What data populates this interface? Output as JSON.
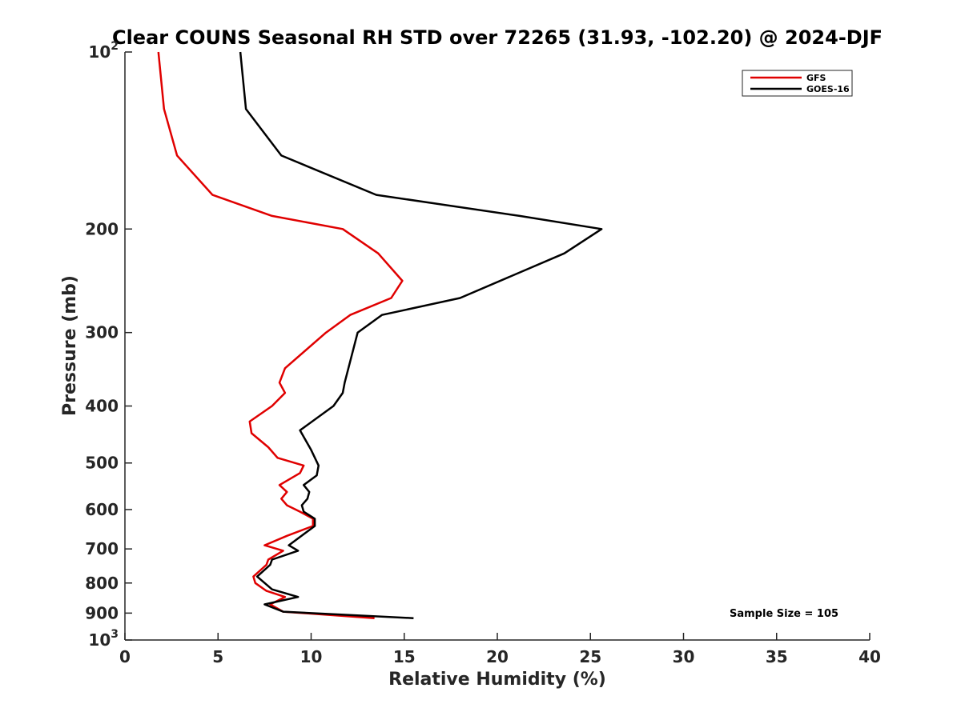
{
  "chart_data": {
    "type": "line",
    "title": "Clear COUNS Seasonal RH STD over 72265 (31.93, -102.20) @ 2024-DJF",
    "xlabel": "Relative Humidity (%)",
    "ylabel": "Pressure (mb)",
    "xlim": [
      0,
      40
    ],
    "ylim": [
      100,
      1000
    ],
    "y_scale": "log",
    "y_reversed": true,
    "x_ticks": [
      0,
      5,
      10,
      15,
      20,
      25,
      30,
      35,
      40
    ],
    "x_tick_labels": [
      "0",
      "5",
      "10",
      "15",
      "20",
      "25",
      "30",
      "35",
      "40"
    ],
    "y_ticks": [
      100,
      200,
      300,
      400,
      500,
      600,
      700,
      800,
      900,
      1000
    ],
    "y_tick_labels": [
      {
        "base": "10",
        "exp": "2"
      },
      {
        "base": "200",
        "exp": ""
      },
      {
        "base": "300",
        "exp": ""
      },
      {
        "base": "400",
        "exp": ""
      },
      {
        "base": "500",
        "exp": ""
      },
      {
        "base": "600",
        "exp": ""
      },
      {
        "base": "700",
        "exp": ""
      },
      {
        "base": "800",
        "exp": ""
      },
      {
        "base": "900",
        "exp": ""
      },
      {
        "base": "10",
        "exp": "3"
      }
    ],
    "legend_position": "top-right",
    "annotation": "Sample Size = 105",
    "series": [
      {
        "name": "GFS",
        "color": "#e00000",
        "points": [
          [
            1.8,
            100
          ],
          [
            2.1,
            125
          ],
          [
            2.8,
            150
          ],
          [
            4.7,
            175
          ],
          [
            7.9,
            190
          ],
          [
            11.7,
            200
          ],
          [
            13.6,
            220
          ],
          [
            14.9,
            245
          ],
          [
            14.3,
            262
          ],
          [
            12.1,
            280
          ],
          [
            10.8,
            300
          ],
          [
            8.6,
            345
          ],
          [
            8.3,
            365
          ],
          [
            8.6,
            380
          ],
          [
            7.9,
            400
          ],
          [
            6.7,
            425
          ],
          [
            6.8,
            445
          ],
          [
            7.7,
            470
          ],
          [
            8.2,
            490
          ],
          [
            9.6,
            505
          ],
          [
            9.4,
            520
          ],
          [
            8.3,
            545
          ],
          [
            8.7,
            560
          ],
          [
            8.4,
            575
          ],
          [
            8.7,
            590
          ],
          [
            9.4,
            605
          ],
          [
            10.1,
            622
          ],
          [
            10.1,
            640
          ],
          [
            8.7,
            665
          ],
          [
            7.5,
            690
          ],
          [
            8.5,
            705
          ],
          [
            7.7,
            730
          ],
          [
            7.6,
            745
          ],
          [
            6.9,
            780
          ],
          [
            7.0,
            800
          ],
          [
            7.6,
            825
          ],
          [
            8.6,
            845
          ],
          [
            7.8,
            870
          ],
          [
            8.5,
            895
          ],
          [
            13.4,
            918
          ]
        ]
      },
      {
        "name": "GOES-16",
        "color": "#000000",
        "points": [
          [
            6.2,
            100
          ],
          [
            6.5,
            125
          ],
          [
            8.4,
            150
          ],
          [
            13.5,
            175
          ],
          [
            21.2,
            190
          ],
          [
            25.6,
            200
          ],
          [
            23.6,
            220
          ],
          [
            18.0,
            262
          ],
          [
            13.8,
            280
          ],
          [
            12.5,
            300
          ],
          [
            11.8,
            365
          ],
          [
            11.7,
            380
          ],
          [
            11.2,
            400
          ],
          [
            9.4,
            440
          ],
          [
            10.0,
            475
          ],
          [
            10.4,
            505
          ],
          [
            10.3,
            525
          ],
          [
            9.6,
            545
          ],
          [
            9.9,
            560
          ],
          [
            9.8,
            575
          ],
          [
            9.5,
            590
          ],
          [
            9.6,
            605
          ],
          [
            10.2,
            622
          ],
          [
            10.2,
            640
          ],
          [
            8.8,
            690
          ],
          [
            9.3,
            705
          ],
          [
            7.9,
            730
          ],
          [
            7.8,
            745
          ],
          [
            7.1,
            780
          ],
          [
            7.9,
            820
          ],
          [
            9.3,
            845
          ],
          [
            7.5,
            870
          ],
          [
            8.5,
            895
          ],
          [
            15.5,
            918
          ]
        ]
      }
    ]
  }
}
